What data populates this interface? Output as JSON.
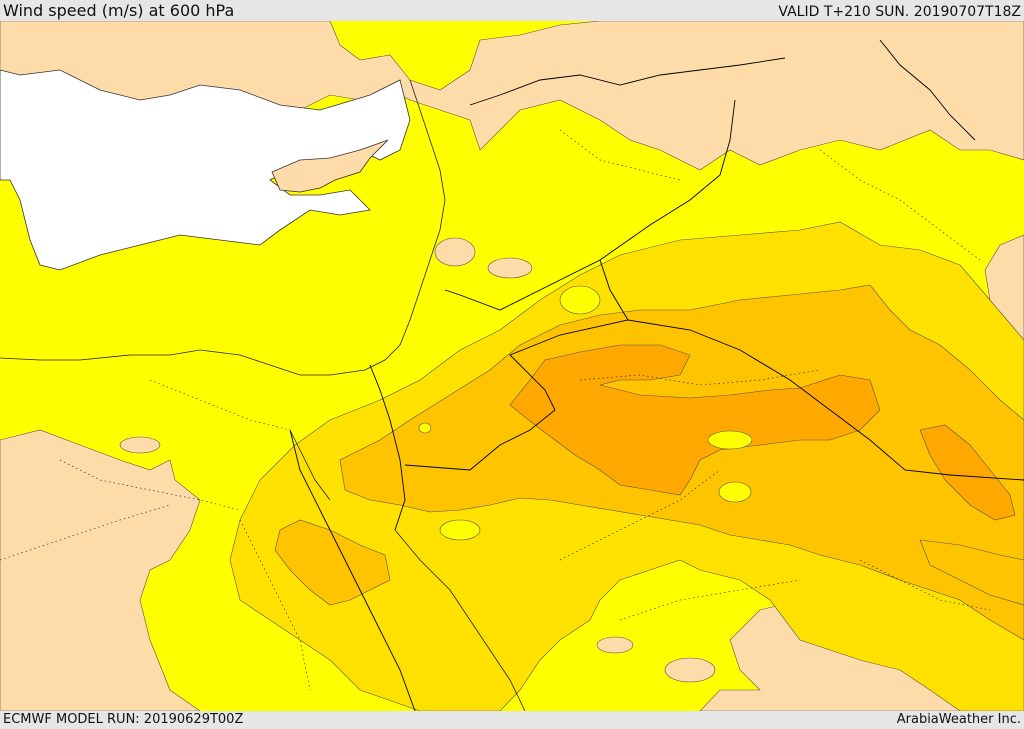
{
  "header": {
    "title": "Wind speed (m/s) at 600 hPa",
    "valid": "VALID T+210 SUN. 20190707T18Z"
  },
  "footer": {
    "model_run": "ECMWF MODEL RUN: 20190629T00Z",
    "credit": "ArabiaWeather Inc."
  },
  "colors": {
    "water": "#ffffff",
    "below_threshold": "#fddcaa",
    "band_1": "#ffff00",
    "band_2": "#ffe100",
    "band_3": "#ffc400",
    "band_4": "#ffa800",
    "band_5": "#ff9a00",
    "borders": "#000000"
  }
}
